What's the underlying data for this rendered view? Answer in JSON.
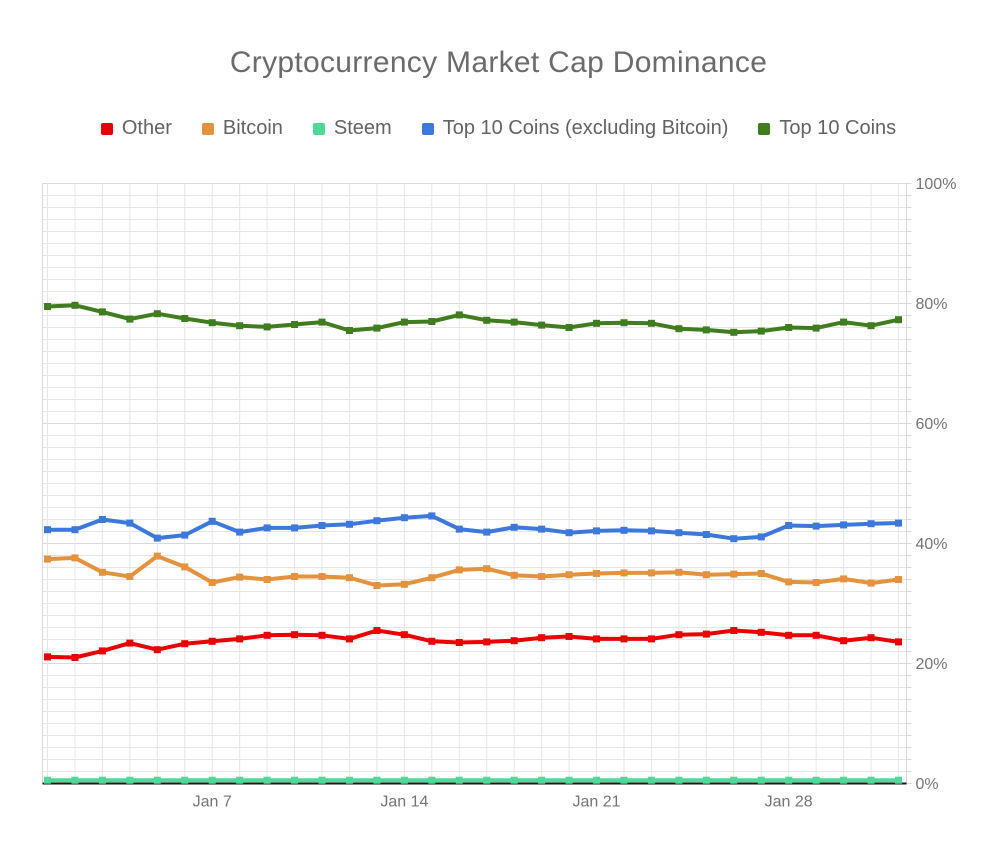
{
  "title": "Cryptocurrency Market Cap Dominance",
  "legend": {
    "position": "top",
    "items": [
      {
        "label": "Other",
        "color": "#ea0000"
      },
      {
        "label": "Bitcoin",
        "color": "#e4923d"
      },
      {
        "label": "Steem",
        "color": "#50d898"
      },
      {
        "label": "Top 10 Coins (excluding Bitcoin)",
        "color": "#3d78dd"
      },
      {
        "label": "Top 10 Coins",
        "color": "#3f7d1f"
      }
    ]
  },
  "axis_colors": {
    "label": "#757575",
    "grid_minor": "#e6e6e6",
    "grid_major": "#d9d9d9",
    "baseline": "#1a1a1a"
  },
  "chart_data": {
    "type": "line",
    "title": "Cryptocurrency Market Cap Dominance",
    "xlabel": "",
    "ylabel": "",
    "ylim": [
      0,
      100
    ],
    "y_major_step": 20,
    "y_minor_step": 2,
    "grid": true,
    "legend_position": "top",
    "yticks": [
      "0%",
      "20%",
      "40%",
      "60%",
      "80%",
      "100%"
    ],
    "x": [
      "Jan 1",
      "Jan 2",
      "Jan 3",
      "Jan 4",
      "Jan 5",
      "Jan 6",
      "Jan 7",
      "Jan 8",
      "Jan 9",
      "Jan 10",
      "Jan 11",
      "Jan 12",
      "Jan 13",
      "Jan 14",
      "Jan 15",
      "Jan 16",
      "Jan 17",
      "Jan 18",
      "Jan 19",
      "Jan 20",
      "Jan 21",
      "Jan 22",
      "Jan 23",
      "Jan 24",
      "Jan 25",
      "Jan 26",
      "Jan 27",
      "Jan 28",
      "Jan 29",
      "Jan 30",
      "Jan 31",
      "Feb 1"
    ],
    "x_tick_labels": [
      "Jan 7",
      "Jan 14",
      "Jan 21",
      "Jan 28"
    ],
    "x_tick_indices": [
      6,
      13,
      20,
      27
    ],
    "series": [
      {
        "name": "Other",
        "color": "#ea0000",
        "values": [
          21.1,
          21.0,
          22.1,
          23.4,
          22.3,
          23.3,
          23.7,
          24.1,
          24.7,
          24.8,
          24.7,
          24.1,
          25.5,
          24.8,
          23.7,
          23.5,
          23.6,
          23.8,
          24.3,
          24.5,
          24.1,
          24.1,
          24.1,
          24.8,
          24.9,
          25.5,
          25.2,
          24.7,
          24.7,
          23.8,
          24.3,
          23.6
        ]
      },
      {
        "name": "Bitcoin",
        "color": "#e4923d",
        "values": [
          37.4,
          37.6,
          35.2,
          34.5,
          37.9,
          36.1,
          33.5,
          34.4,
          34.0,
          34.5,
          34.5,
          34.3,
          33.0,
          33.2,
          34.3,
          35.6,
          35.8,
          34.7,
          34.5,
          34.8,
          35.0,
          35.1,
          35.1,
          35.2,
          34.8,
          34.9,
          35.0,
          33.6,
          33.5,
          34.1,
          33.4,
          34.0
        ]
      },
      {
        "name": "Steem",
        "color": "#50d898",
        "values": [
          0.55,
          0.55,
          0.55,
          0.55,
          0.55,
          0.55,
          0.55,
          0.55,
          0.55,
          0.55,
          0.55,
          0.55,
          0.55,
          0.55,
          0.55,
          0.55,
          0.55,
          0.55,
          0.55,
          0.55,
          0.55,
          0.55,
          0.55,
          0.55,
          0.55,
          0.55,
          0.55,
          0.55,
          0.55,
          0.55,
          0.55,
          0.55
        ]
      },
      {
        "name": "Top 10 Coins (excluding Bitcoin)",
        "color": "#3d78dd",
        "values": [
          42.3,
          42.3,
          44.0,
          43.4,
          40.9,
          41.4,
          43.7,
          41.9,
          42.6,
          42.6,
          43.0,
          43.2,
          43.8,
          44.3,
          44.6,
          42.4,
          41.9,
          42.7,
          42.4,
          41.8,
          42.1,
          42.2,
          42.1,
          41.8,
          41.5,
          40.8,
          41.1,
          43.0,
          42.9,
          43.1,
          43.3,
          43.4
        ]
      },
      {
        "name": "Top 10 Coins",
        "color": "#3f7d1f",
        "values": [
          79.5,
          79.7,
          78.6,
          77.4,
          78.3,
          77.5,
          76.8,
          76.3,
          76.1,
          76.5,
          76.9,
          75.5,
          75.9,
          76.9,
          77.0,
          78.1,
          77.2,
          76.9,
          76.4,
          76.0,
          76.7,
          76.8,
          76.7,
          75.8,
          75.6,
          75.2,
          75.4,
          76.0,
          75.9,
          76.9,
          76.3,
          77.3
        ]
      }
    ]
  }
}
